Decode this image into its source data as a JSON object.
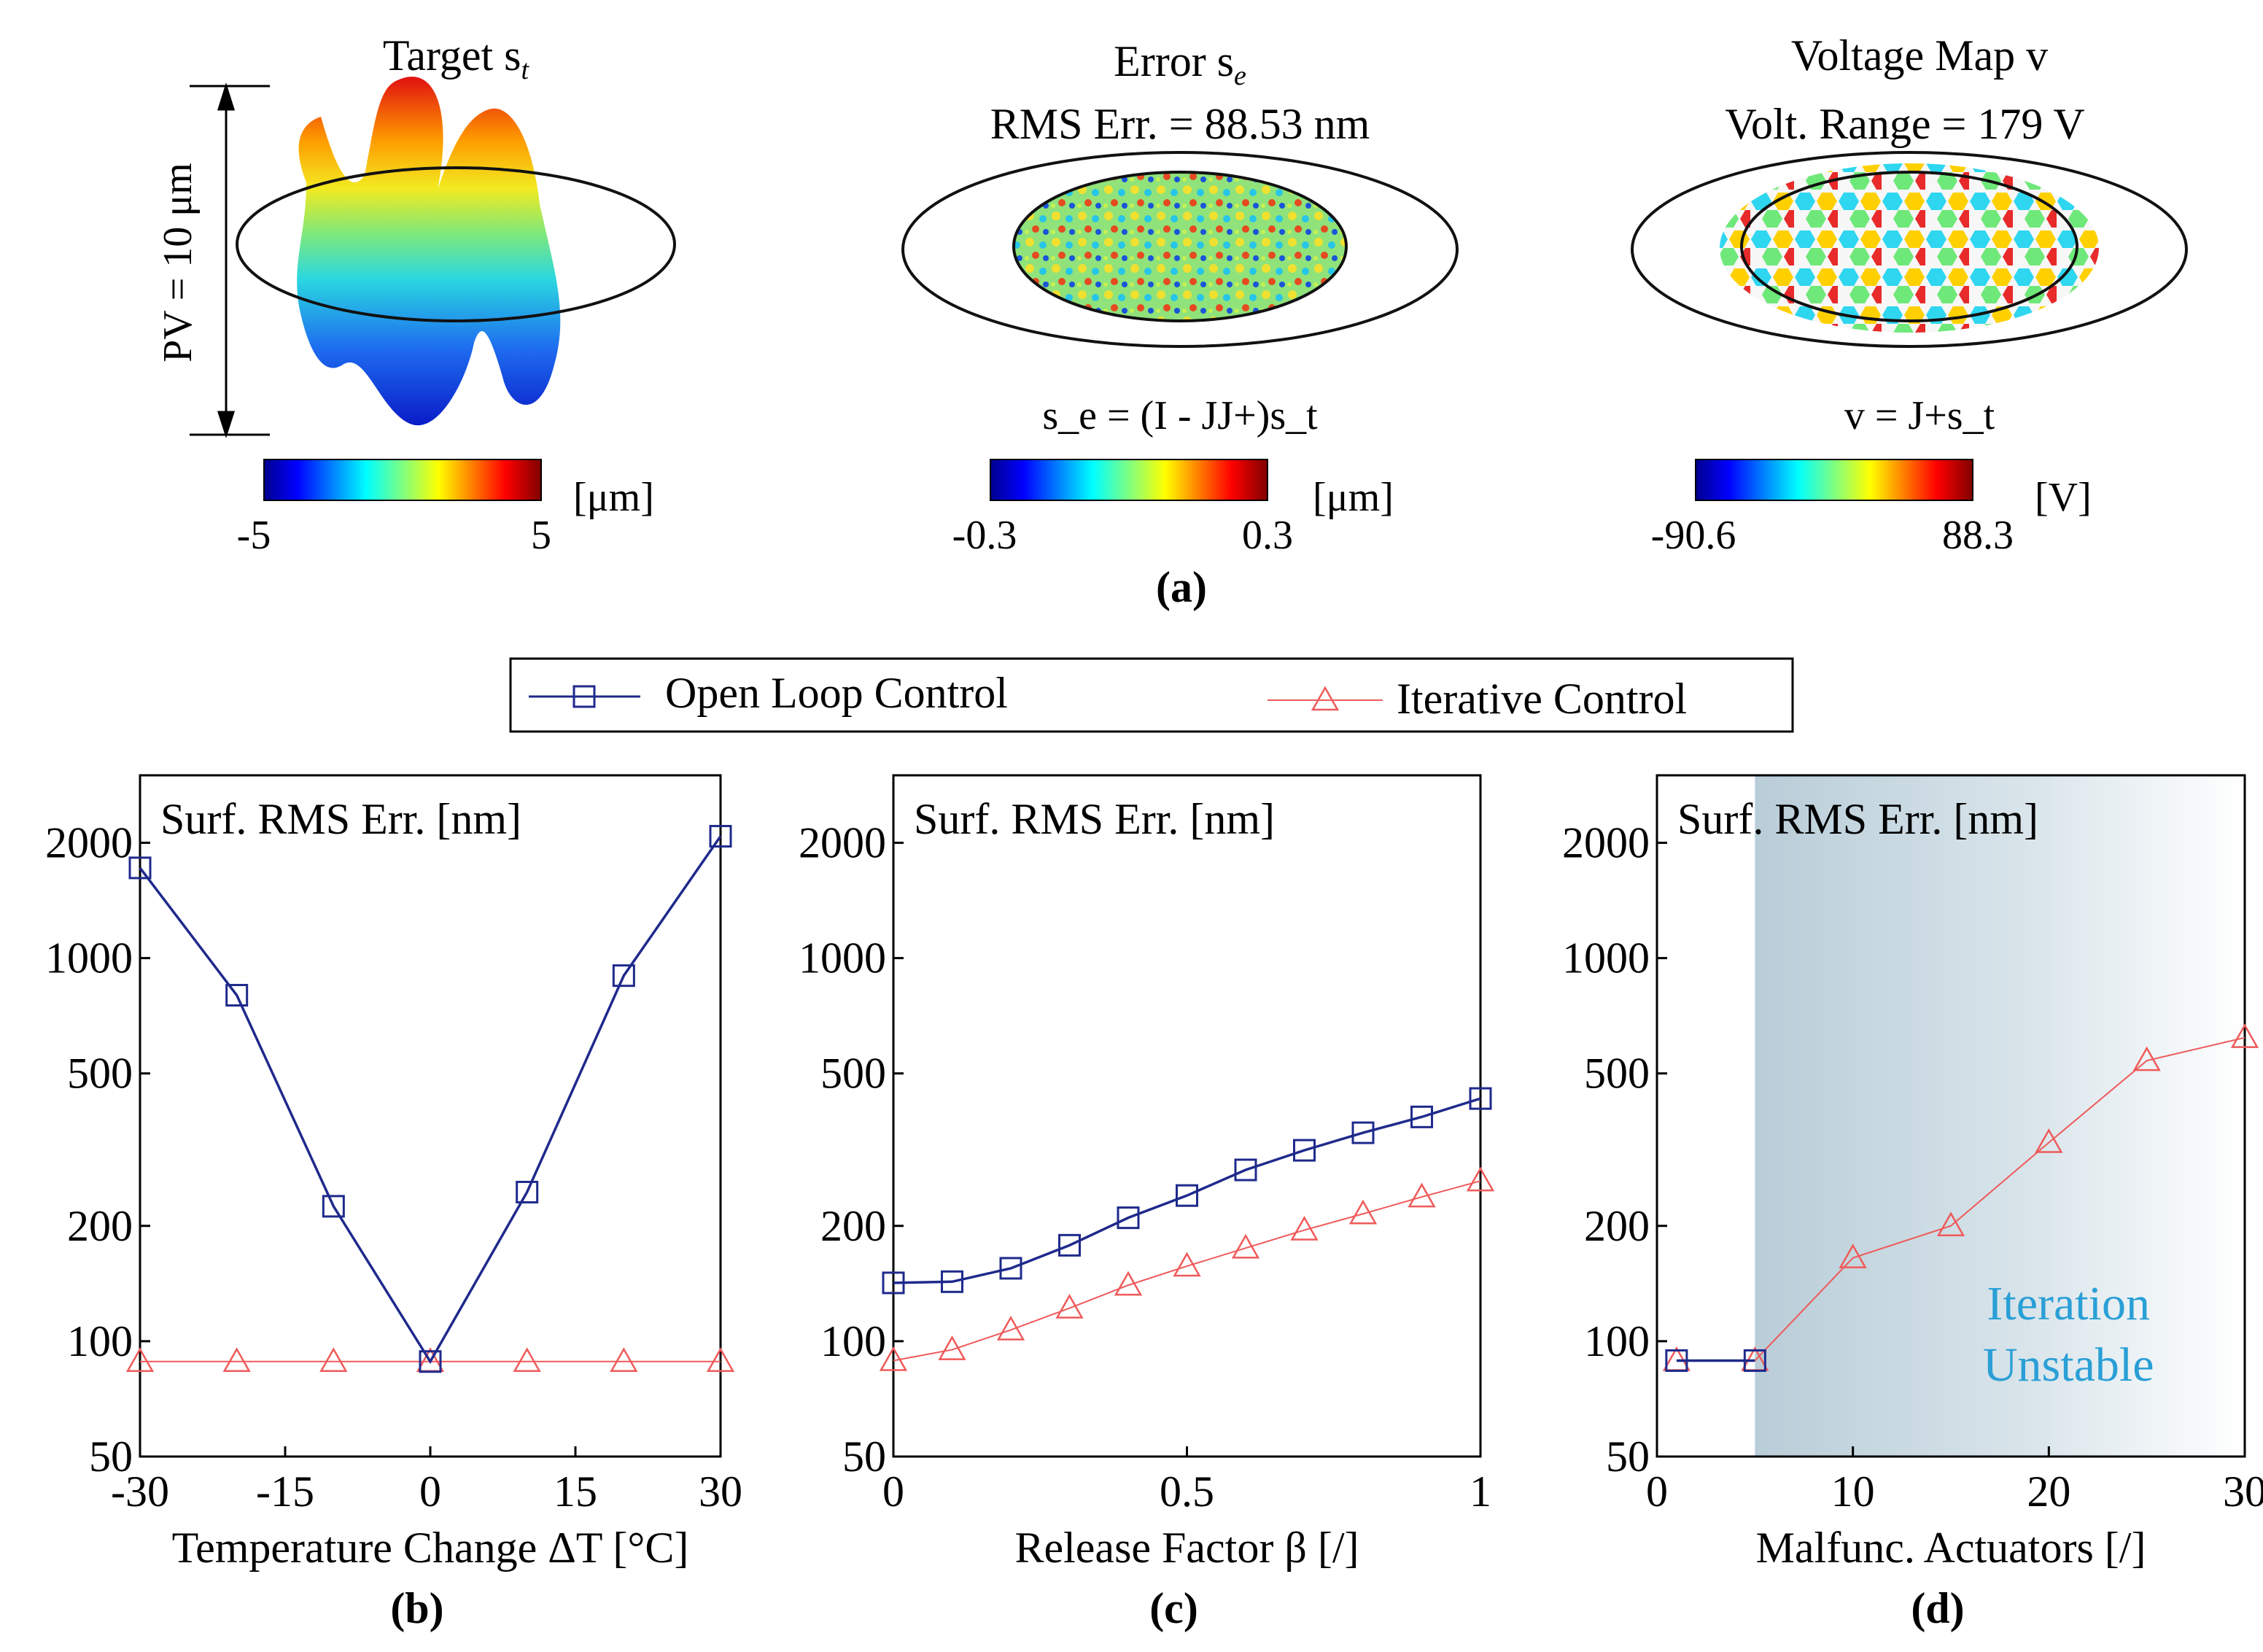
{
  "panel_a": {
    "label": "(a)",
    "target": {
      "title": "Target s",
      "subscript": "t",
      "pv_label": "PV = 10 μm",
      "colorbar": {
        "min_label": "-5",
        "max_label": "5",
        "unit": "[μm]"
      }
    },
    "error": {
      "title": "Error s",
      "subscript": "e",
      "rms_text": "RMS Err. = 88.53 nm",
      "formula": "s_e = (I - JJ+)s_t",
      "colorbar": {
        "min_label": "-0.3",
        "max_label": "0.3",
        "unit": "[μm]"
      }
    },
    "voltage": {
      "title": "Voltage Map v",
      "range_text": "Volt. Range = 179 V",
      "formula": "v = J+s_t",
      "colorbar": {
        "min_label": "-90.6",
        "max_label": "88.3",
        "unit": "[V]"
      }
    }
  },
  "legend": {
    "open_loop": "Open Loop Control",
    "iterative": "Iterative Control"
  },
  "colors": {
    "open_loop": "#1f2a8c",
    "iterative": "#ef5a5a",
    "unstable_text": "#2a9fd6",
    "shade": "#c9d8e0"
  },
  "chart_data": [
    {
      "type": "line",
      "panel_label": "(b)",
      "title": "Surf. RMS Err. [nm]",
      "xlabel": "Temperature Change ΔT [°C]",
      "ylabel": "Surf. RMS Err. [nm]",
      "yscale": "log",
      "xlim": [
        -30,
        30
      ],
      "ylim": [
        50,
        3000
      ],
      "xticks": [
        -30,
        -15,
        0,
        15,
        30
      ],
      "yticks": [
        50,
        100,
        200,
        500,
        1000,
        2000
      ],
      "series": [
        {
          "name": "Open Loop Control",
          "x": [
            -30,
            -20,
            -10,
            0,
            10,
            20,
            30
          ],
          "values": [
            1720,
            800,
            225,
            88.5,
            245,
            900,
            2080
          ]
        },
        {
          "name": "Iterative Control",
          "x": [
            -30,
            -20,
            -10,
            0,
            10,
            20,
            30
          ],
          "values": [
            88.5,
            88.5,
            88.5,
            88.5,
            88.5,
            88.5,
            88.5
          ]
        }
      ]
    },
    {
      "type": "line",
      "panel_label": "(c)",
      "title": "Surf. RMS Err. [nm]",
      "xlabel": "Release Factor β [/]",
      "ylabel": "Surf. RMS Err. [nm]",
      "yscale": "log",
      "xlim": [
        0,
        1
      ],
      "ylim": [
        50,
        3000
      ],
      "xticks": [
        0,
        0.5,
        1
      ],
      "yticks": [
        50,
        100,
        200,
        500,
        1000,
        2000
      ],
      "series": [
        {
          "name": "Open Loop Control",
          "x": [
            0,
            0.1,
            0.2,
            0.3,
            0.4,
            0.5,
            0.6,
            0.7,
            0.8,
            0.9,
            1.0
          ],
          "values": [
            142,
            143,
            155,
            178,
            210,
            240,
            280,
            315,
            350,
            385,
            430
          ]
        },
        {
          "name": "Iterative Control",
          "x": [
            0,
            0.1,
            0.2,
            0.3,
            0.4,
            0.5,
            0.6,
            0.7,
            0.8,
            0.9,
            1.0
          ],
          "values": [
            89,
            95,
            107,
            122,
            140,
            157,
            175,
            195,
            215,
            238,
            262
          ]
        }
      ]
    },
    {
      "type": "line",
      "panel_label": "(d)",
      "title": "Surf. RMS Err. [nm]",
      "xlabel": "Malfunc. Actuators [/]",
      "ylabel": "Surf. RMS Err. [nm]",
      "yscale": "log",
      "xlim": [
        0,
        30
      ],
      "ylim": [
        50,
        3000
      ],
      "xticks": [
        0,
        10,
        20,
        30
      ],
      "yticks": [
        50,
        100,
        200,
        500,
        1000,
        2000
      ],
      "shaded_region": {
        "x_from": 5,
        "x_to": 30
      },
      "annotation": [
        "Iteration",
        "Unstable"
      ],
      "series": [
        {
          "name": "Open Loop Control",
          "x": [
            1,
            5
          ],
          "values": [
            89,
            89
          ]
        },
        {
          "name": "Iterative Control",
          "x": [
            1,
            5,
            10,
            15,
            20,
            25,
            30
          ],
          "values": [
            89,
            89,
            165,
            200,
            330,
            540,
            620
          ]
        }
      ]
    }
  ]
}
